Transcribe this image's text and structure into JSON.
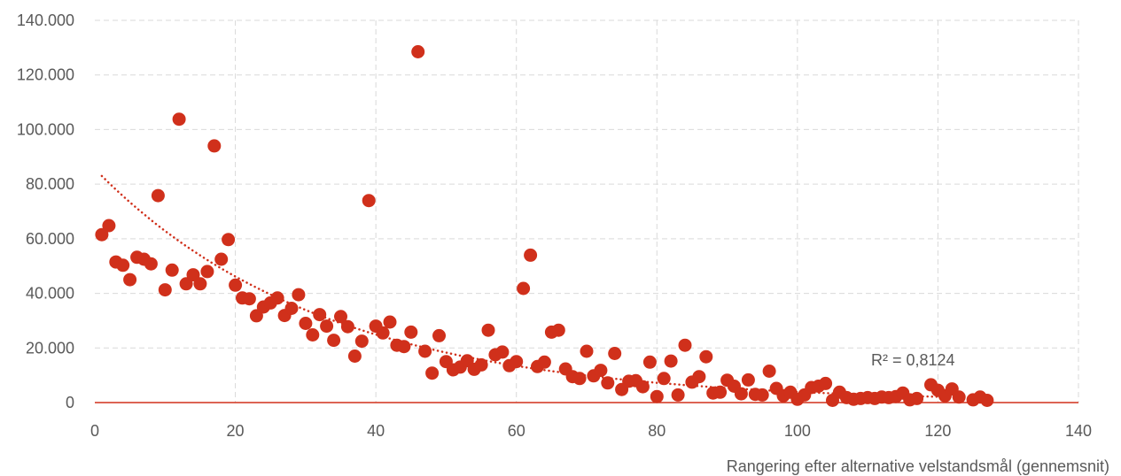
{
  "chart_data": {
    "type": "scatter",
    "xlabel": "Rangering efter alternative velstandsmål (gennemsnit)",
    "ylabel": "",
    "xlim": [
      0,
      140
    ],
    "ylim": [
      0,
      140000
    ],
    "x_ticks": [
      0,
      20,
      40,
      60,
      80,
      100,
      120,
      140
    ],
    "y_ticks": [
      0,
      20000,
      40000,
      60000,
      80000,
      100000,
      120000,
      140000
    ],
    "x_tick_labels": [
      "0",
      "20",
      "40",
      "60",
      "80",
      "100",
      "120",
      "140"
    ],
    "y_tick_labels": [
      "0",
      "20.000",
      "40.000",
      "60.000",
      "80.000",
      "100.000",
      "120.000",
      "140.000"
    ],
    "grid": true,
    "marker_color": "#d0301b",
    "trendline": {
      "type": "exponential",
      "style": "dotted",
      "color": "#d0301b",
      "x_range": [
        1,
        127
      ],
      "start_value": 83000,
      "end_value": 1700,
      "r_squared_label": "R² = 0,8124"
    },
    "series": [
      {
        "points": [
          [
            1,
            61500
          ],
          [
            2,
            64800
          ],
          [
            3,
            51500
          ],
          [
            4,
            50300
          ],
          [
            5,
            45000
          ],
          [
            6,
            53200
          ],
          [
            7,
            52500
          ],
          [
            8,
            50800
          ],
          [
            9,
            75800
          ],
          [
            10,
            41300
          ],
          [
            11,
            48500
          ],
          [
            12,
            103800
          ],
          [
            13,
            43500
          ],
          [
            14,
            46800
          ],
          [
            15,
            43500
          ],
          [
            16,
            48000
          ],
          [
            17,
            94000
          ],
          [
            18,
            52500
          ],
          [
            19,
            59700
          ],
          [
            20,
            43000
          ],
          [
            21,
            38300
          ],
          [
            22,
            38000
          ],
          [
            23,
            31800
          ],
          [
            24,
            35000
          ],
          [
            25,
            36500
          ],
          [
            26,
            38300
          ],
          [
            27,
            31900
          ],
          [
            28,
            34500
          ],
          [
            29,
            39500
          ],
          [
            30,
            29000
          ],
          [
            31,
            24800
          ],
          [
            32,
            32200
          ],
          [
            33,
            28000
          ],
          [
            34,
            22800
          ],
          [
            35,
            31500
          ],
          [
            36,
            27800
          ],
          [
            37,
            17000
          ],
          [
            38,
            22500
          ],
          [
            39,
            74000
          ],
          [
            40,
            28000
          ],
          [
            41,
            25500
          ],
          [
            42,
            29500
          ],
          [
            43,
            21000
          ],
          [
            44,
            20500
          ],
          [
            45,
            25800
          ],
          [
            46,
            128500
          ],
          [
            47,
            18800
          ],
          [
            48,
            10800
          ],
          [
            49,
            24500
          ],
          [
            50,
            15000
          ],
          [
            51,
            12000
          ],
          [
            52,
            13000
          ],
          [
            53,
            15300
          ],
          [
            54,
            12200
          ],
          [
            55,
            13800
          ],
          [
            56,
            26500
          ],
          [
            57,
            17500
          ],
          [
            58,
            18500
          ],
          [
            59,
            13500
          ],
          [
            60,
            15000
          ],
          [
            61,
            41800
          ],
          [
            62,
            54000
          ],
          [
            63,
            13200
          ],
          [
            64,
            14800
          ],
          [
            65,
            25800
          ],
          [
            66,
            26500
          ],
          [
            67,
            12300
          ],
          [
            68,
            9500
          ],
          [
            69,
            8800
          ],
          [
            70,
            18800
          ],
          [
            71,
            9800
          ],
          [
            72,
            11800
          ],
          [
            73,
            7200
          ],
          [
            74,
            18000
          ],
          [
            75,
            4800
          ],
          [
            76,
            7800
          ],
          [
            77,
            8000
          ],
          [
            78,
            5800
          ],
          [
            79,
            14800
          ],
          [
            80,
            2200
          ],
          [
            81,
            8800
          ],
          [
            82,
            15200
          ],
          [
            83,
            2800
          ],
          [
            84,
            21000
          ],
          [
            85,
            7500
          ],
          [
            86,
            9500
          ],
          [
            87,
            16800
          ],
          [
            88,
            3500
          ],
          [
            89,
            3800
          ],
          [
            90,
            8200
          ],
          [
            91,
            6000
          ],
          [
            92,
            3200
          ],
          [
            93,
            8300
          ],
          [
            94,
            3000
          ],
          [
            95,
            2800
          ],
          [
            96,
            11500
          ],
          [
            97,
            5200
          ],
          [
            98,
            2500
          ],
          [
            99,
            3800
          ],
          [
            100,
            1200
          ],
          [
            101,
            2800
          ],
          [
            102,
            5500
          ],
          [
            103,
            6000
          ],
          [
            104,
            7000
          ],
          [
            105,
            800
          ],
          [
            106,
            3800
          ],
          [
            107,
            1800
          ],
          [
            108,
            1200
          ],
          [
            109,
            1500
          ],
          [
            110,
            1800
          ],
          [
            111,
            1500
          ],
          [
            112,
            2000
          ],
          [
            113,
            1800
          ],
          [
            114,
            2200
          ],
          [
            115,
            3500
          ],
          [
            116,
            1000
          ],
          [
            117,
            1500
          ],
          [
            119,
            6500
          ],
          [
            120,
            4500
          ],
          [
            121,
            2500
          ],
          [
            122,
            5000
          ],
          [
            123,
            2000
          ],
          [
            125,
            1000
          ],
          [
            126,
            2000
          ],
          [
            127,
            800
          ]
        ]
      }
    ]
  }
}
